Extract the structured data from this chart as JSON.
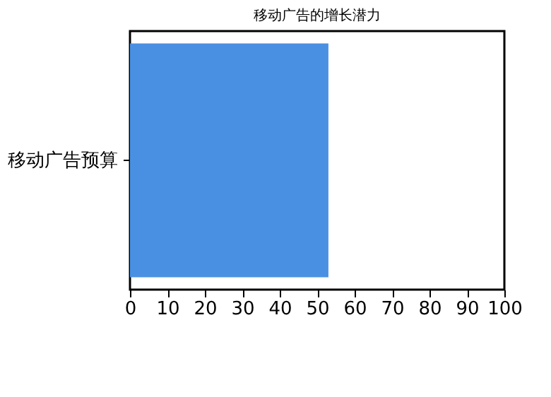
{
  "chart_data": {
    "type": "bar",
    "title": "移动广告的增长潜力",
    "orientation": "horizontal",
    "categories": [
      "移动广告预算"
    ],
    "values": [
      53
    ],
    "color": "#4a90e2",
    "xlim": [
      0,
      100
    ],
    "xticks": [
      0,
      10,
      20,
      30,
      40,
      50,
      60,
      70,
      80,
      90,
      100
    ],
    "grid": false
  }
}
